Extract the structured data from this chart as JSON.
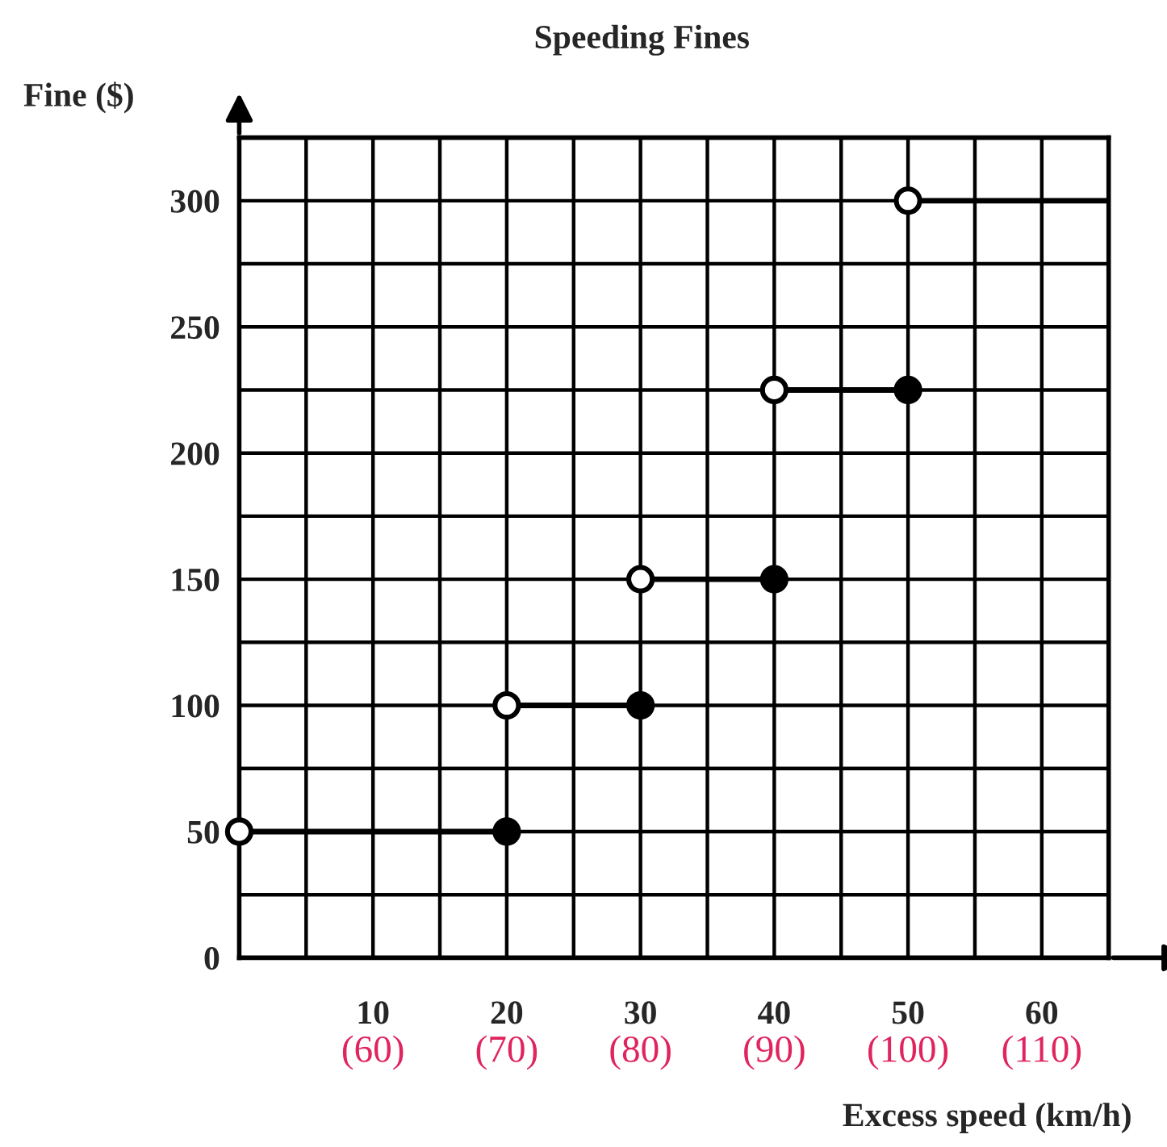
{
  "chart_data": {
    "type": "line",
    "title": "Speeding Fines",
    "xlabel": "Excess speed (km/h)",
    "ylabel": "Fine ($)",
    "xlim": [
      0,
      65
    ],
    "ylim": [
      0,
      325
    ],
    "xticks": [
      {
        "value": 0,
        "label": null
      },
      10,
      20,
      30,
      40,
      50,
      60
    ],
    "yticks": [
      0,
      50,
      100,
      150,
      200,
      250,
      300
    ],
    "x2lim": [
      50,
      115
    ],
    "x2ticks": [
      {
        "value": 60,
        "label": "(60)"
      },
      {
        "value": 70,
        "label": "(70)"
      },
      {
        "value": 80,
        "label": "(80)"
      },
      {
        "value": 90,
        "label": "(90)"
      },
      {
        "value": 100,
        "label": "(100)"
      },
      {
        "value": 110,
        "label": "(110)"
      }
    ],
    "grid": true,
    "legend": false,
    "series": [
      {
        "color": "#000000",
        "marker": "none",
        "x": [
          0,
          20
        ],
        "values": [
          50,
          50
        ]
      },
      {
        "color": "#000000",
        "marker": "none",
        "x": [
          20,
          30
        ],
        "values": [
          100,
          100
        ]
      },
      {
        "color": "#000000",
        "marker": "none",
        "x": [
          30,
          40
        ],
        "values": [
          150,
          150
        ]
      },
      {
        "color": "#000000",
        "marker": "none",
        "x": [
          40,
          50
        ],
        "values": [
          225,
          225
        ]
      },
      {
        "color": "#000000",
        "marker": "none",
        "x": [
          50,
          65
        ],
        "values": [
          300,
          300
        ]
      },
      {
        "type": "scatter",
        "color": "#ffffff",
        "marker": "circle",
        "x": [
          0,
          20,
          30,
          40,
          50
        ],
        "values": [
          50,
          100,
          150,
          225,
          300
        ]
      },
      {
        "type": "scatter",
        "color": "#000000",
        "marker": "circle",
        "x": [
          20,
          30,
          40,
          50
        ],
        "values": [
          50,
          100,
          150,
          225
        ]
      }
    ]
  }
}
